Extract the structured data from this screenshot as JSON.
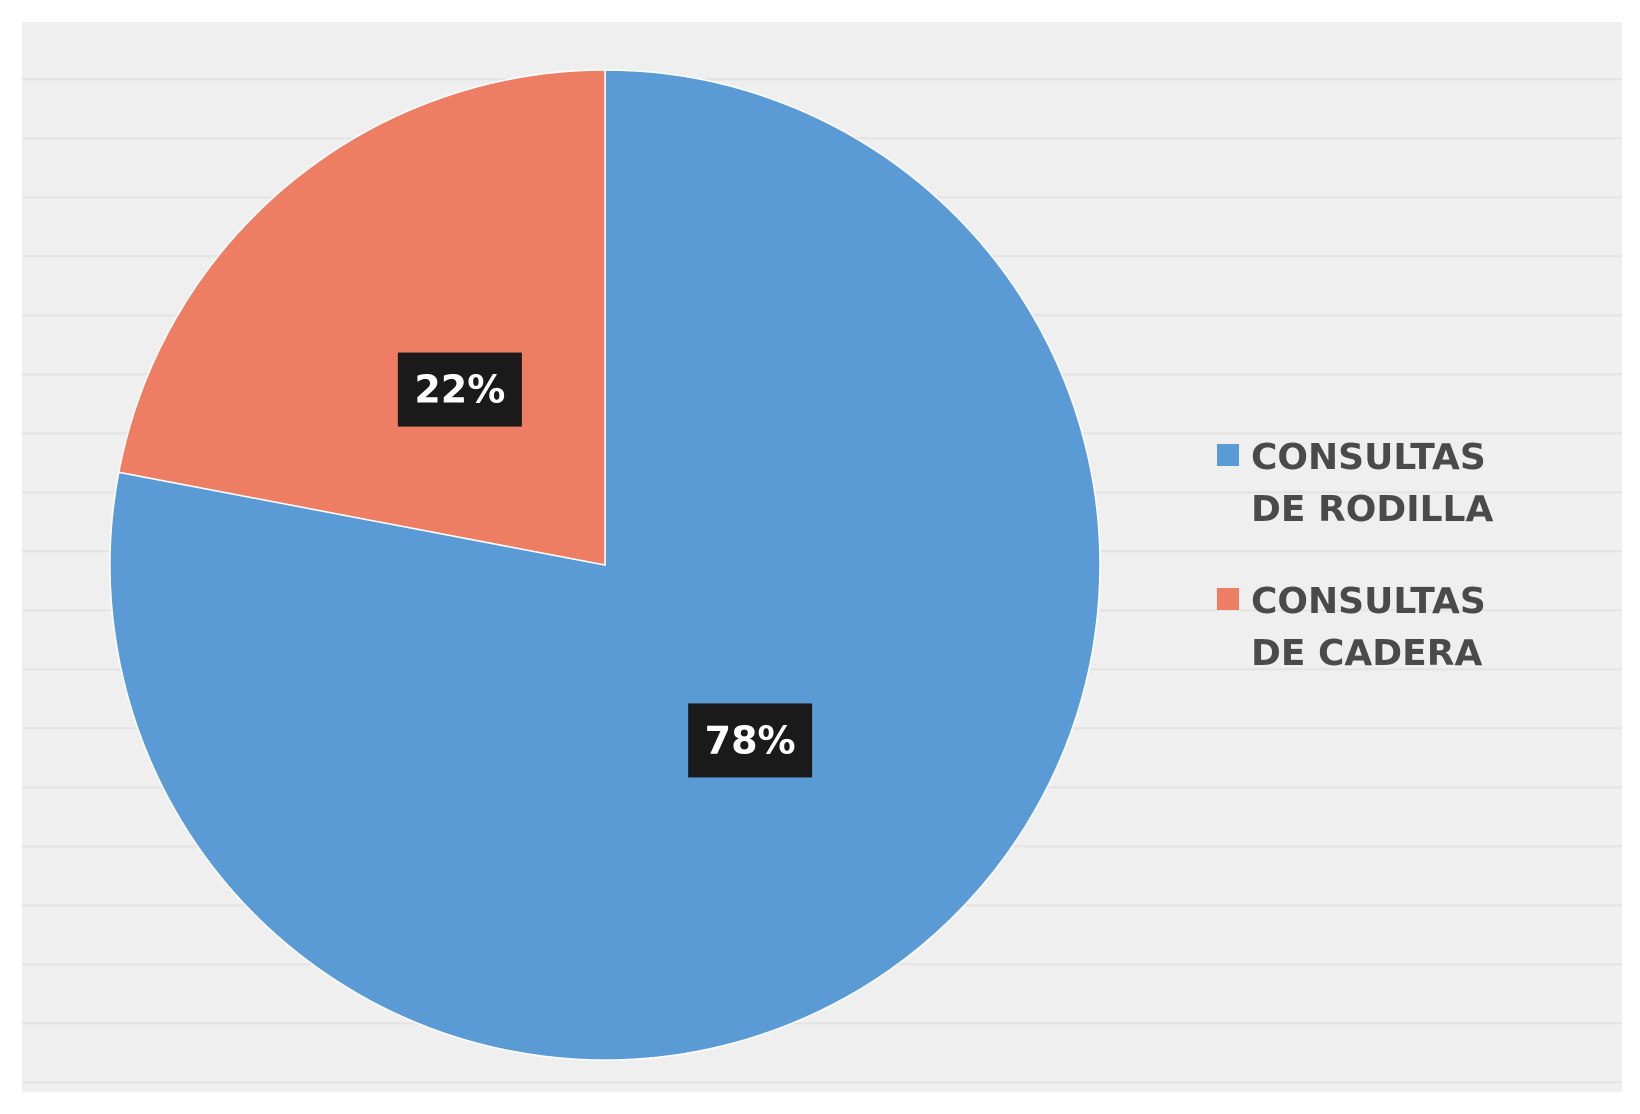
{
  "chart_data": {
    "type": "pie",
    "categories": [
      "CONSULTAS DE RODILLA",
      "CONSULTAS DE CADERA"
    ],
    "values": [
      78,
      22
    ],
    "data_labels": [
      "78%",
      "22%"
    ],
    "colors": [
      "#5b9bd5",
      "#ed7d63"
    ],
    "legend": {
      "placement": "right",
      "entries": [
        "CONSULTAS DE RODILLA",
        "CONSULTAS DE CADERA"
      ]
    },
    "start_angle": "top (12 o'clock), clockwise"
  }
}
